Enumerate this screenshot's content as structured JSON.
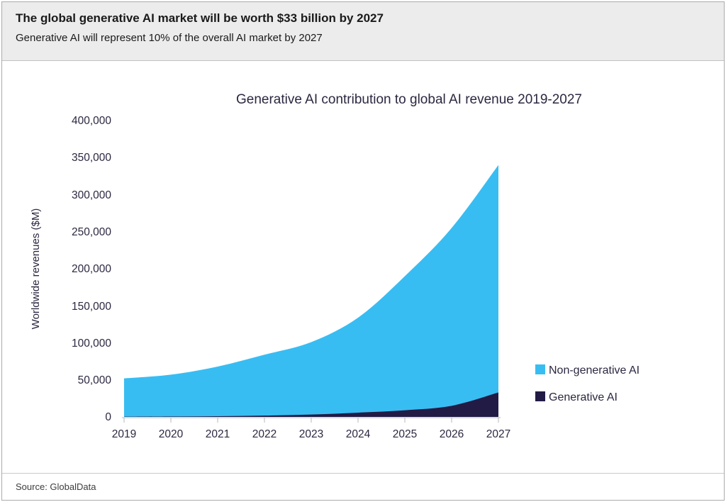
{
  "header": {
    "title": "The global generative AI market will be worth $33 billion by 2027",
    "subtitle": "Generative AI will represent 10% of the overall AI market by 2027"
  },
  "chart_data": {
    "type": "area",
    "stacked": true,
    "title": "Generative AI contribution to global AI revenue 2019-2027",
    "xlabel": "",
    "ylabel": "Worldwide revenues ($M)",
    "x": [
      2019,
      2020,
      2021,
      2022,
      2023,
      2024,
      2025,
      2026,
      2027
    ],
    "x_labels": [
      "2019",
      "2020",
      "2021",
      "2022",
      "2023",
      "2024",
      "2025",
      "2026",
      "2027"
    ],
    "ylim": [
      0,
      400000
    ],
    "y_ticks": [
      0,
      50000,
      100000,
      150000,
      200000,
      250000,
      300000,
      350000,
      400000
    ],
    "y_tick_labels": [
      "0",
      "50,000",
      "100,000",
      "150,000",
      "200,000",
      "250,000",
      "300,000",
      "350,000",
      "400,000"
    ],
    "grid": false,
    "legend_position": "right",
    "series": [
      {
        "name": "Non-generative AI",
        "color": "#38BDF2",
        "values": [
          51700,
          56500,
          67000,
          82200,
          97800,
          128200,
          181000,
          240000,
          307000
        ]
      },
      {
        "name": "Generative AI",
        "color": "#221B46",
        "values": [
          300,
          550,
          1000,
          1800,
          3200,
          5800,
          9000,
          15000,
          33000
        ]
      }
    ]
  },
  "footer": {
    "source": "Source: GlobalData"
  }
}
